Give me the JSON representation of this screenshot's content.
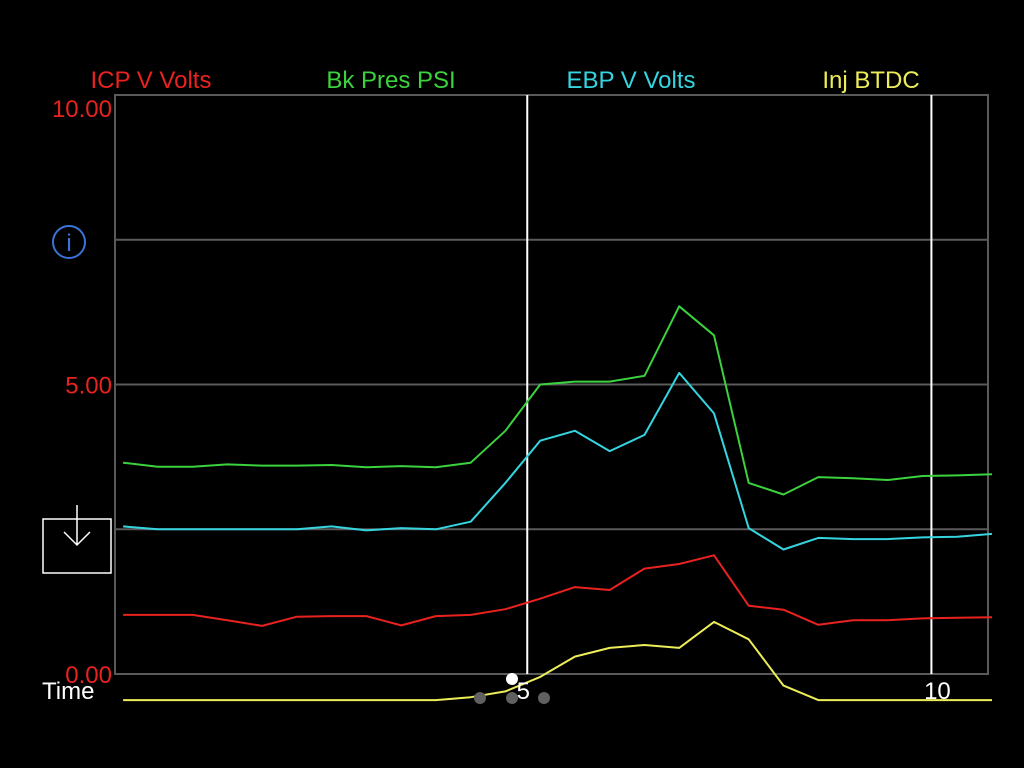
{
  "chart_data": {
    "type": "line",
    "title": "",
    "xlabel": "Time",
    "ylabel": "",
    "xlim": [
      -0.1,
      10.7
    ],
    "ylim": [
      0,
      10
    ],
    "x_ticks": [
      5,
      10
    ],
    "x_tick_labels": [
      "5",
      "10"
    ],
    "y_ticks": [
      0,
      5,
      10
    ],
    "y_tick_labels": [
      "0.00",
      "5.00",
      "10.00"
    ],
    "y_gridlines": [
      0,
      2.5,
      5,
      7.5,
      10
    ],
    "x_cursor_lines": [
      5,
      10
    ],
    "grid": true,
    "legend_placement": "top",
    "x": [
      0,
      0.43,
      0.86,
      1.29,
      1.72,
      2.15,
      2.58,
      3.01,
      3.44,
      3.87,
      4.3,
      4.73,
      5.16,
      5.59,
      6.02,
      6.45,
      6.88,
      7.31,
      7.74,
      8.17,
      8.6,
      9.03,
      9.46,
      9.89,
      10.32,
      10.75
    ],
    "series": [
      {
        "name": "ICP V Volts",
        "color": "#e8221f",
        "values": [
          1.02,
          1.02,
          1.02,
          0.93,
          0.83,
          0.99,
          1.0,
          1.0,
          0.84,
          1.0,
          1.02,
          1.12,
          1.3,
          1.5,
          1.45,
          1.82,
          1.9,
          2.05,
          1.18,
          1.11,
          0.85,
          0.93,
          0.93,
          0.96,
          0.97,
          0.98
        ]
      },
      {
        "name": "Bk Pres PSI",
        "color": "#3bd23d",
        "values": [
          3.65,
          3.58,
          3.58,
          3.62,
          3.6,
          3.6,
          3.61,
          3.57,
          3.59,
          3.57,
          3.65,
          4.2,
          5.0,
          5.05,
          5.05,
          5.15,
          6.35,
          5.85,
          3.3,
          3.1,
          3.4,
          3.38,
          3.35,
          3.42,
          3.43,
          3.45
        ]
      },
      {
        "name": "EBP V Volts",
        "color": "#35d5e0",
        "values": [
          2.55,
          2.5,
          2.5,
          2.5,
          2.5,
          2.5,
          2.55,
          2.48,
          2.52,
          2.5,
          2.63,
          3.3,
          4.03,
          4.2,
          3.85,
          4.13,
          5.2,
          4.5,
          2.52,
          2.15,
          2.35,
          2.33,
          2.33,
          2.36,
          2.37,
          2.42
        ]
      },
      {
        "name": "Inj BTDC",
        "color": "#eded59",
        "values": [
          -0.45,
          -0.45,
          -0.45,
          -0.45,
          -0.45,
          -0.45,
          -0.45,
          -0.45,
          -0.45,
          -0.45,
          -0.4,
          -0.3,
          -0.05,
          0.3,
          0.45,
          0.5,
          0.45,
          0.9,
          0.6,
          -0.2,
          -0.45,
          -0.45,
          -0.45,
          -0.45,
          -0.45,
          -0.45
        ]
      }
    ]
  },
  "controls": {
    "info_icon": "info-icon",
    "download_icon": "download-icon",
    "page_indicator": {
      "count": 4,
      "active_index": 1
    }
  }
}
